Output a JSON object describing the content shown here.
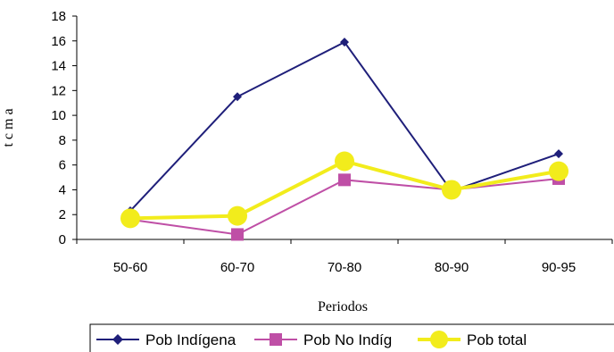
{
  "chart_data": {
    "type": "line",
    "title": "",
    "xlabel": "Periodos",
    "ylabel": "t c m a",
    "categories": [
      "50-60",
      "60-70",
      "70-80",
      "80-90",
      "90-95"
    ],
    "ylim": [
      0,
      18
    ],
    "yticks": [
      0,
      2,
      4,
      6,
      8,
      10,
      12,
      14,
      16,
      18
    ],
    "grid": false,
    "legend_position": "bottom",
    "series": [
      {
        "name": "Pob Indígena",
        "values": [
          2.3,
          11.5,
          15.9,
          3.9,
          6.9
        ],
        "color": "#1f1f7a",
        "marker": "diamond"
      },
      {
        "name": "Pob No Indíg",
        "values": [
          1.6,
          0.4,
          4.8,
          4.0,
          4.9
        ],
        "color": "#bf4fa6",
        "marker": "square"
      },
      {
        "name": "Pob total",
        "values": [
          1.7,
          1.9,
          6.3,
          4.0,
          5.5
        ],
        "color": "#f2ec1c",
        "marker": "circle"
      }
    ]
  }
}
